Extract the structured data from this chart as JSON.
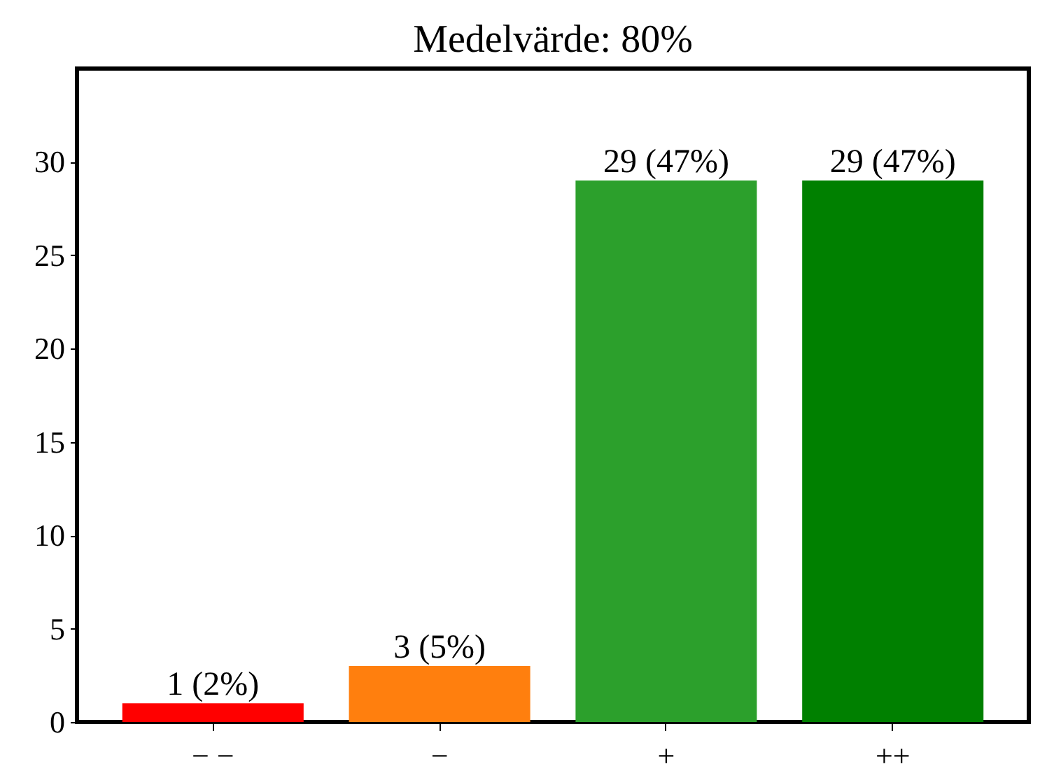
{
  "chart_data": {
    "type": "bar",
    "title": "Medelvärde: 80%",
    "categories": [
      "− −",
      "−",
      "+",
      "++"
    ],
    "values": [
      1,
      3,
      29,
      29
    ],
    "colors": [
      "#ff0000",
      "#ff7f0e",
      "#2ca02c",
      "#008000"
    ],
    "value_labels": [
      "1 (2%)",
      "3 (5%)",
      "29 (47%)",
      "29 (47%)"
    ],
    "ylim": [
      0,
      35
    ],
    "yticks": [
      0,
      5,
      10,
      15,
      20,
      25,
      30
    ],
    "grid": false
  }
}
